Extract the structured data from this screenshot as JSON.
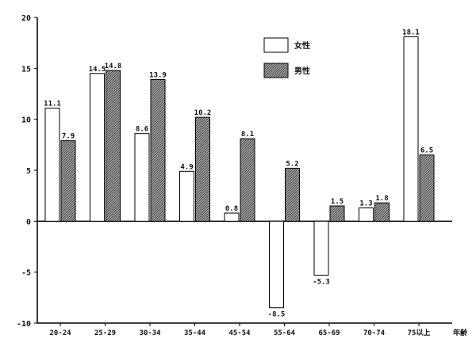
{
  "chart_data": {
    "type": "bar",
    "title": "",
    "xlabel": "年齢",
    "ylabel": "",
    "ylim": [
      -10,
      20
    ],
    "yticks": [
      -10,
      -5,
      0,
      5,
      10,
      15,
      20
    ],
    "ytick_labels": [
      "-10",
      "-5",
      "0",
      "5",
      "10",
      "15",
      "20"
    ],
    "grid": false,
    "legend_position": "top-right",
    "categories": [
      "20-24",
      "25-29",
      "30-34",
      "35-44",
      "45-54",
      "55-64",
      "65-69",
      "70-74",
      "75以上"
    ],
    "series": [
      {
        "name": "女性",
        "values": [
          11.1,
          14.5,
          8.6,
          4.9,
          0.8,
          -8.5,
          -5.3,
          1.3,
          18.1
        ],
        "labels": [
          "11.1",
          "14.5",
          "8.6",
          "4.9",
          "0.8",
          "-8.5",
          "-5.3",
          "1.3",
          "18.1"
        ],
        "fill": "#ffffff"
      },
      {
        "name": "男性",
        "values": [
          7.9,
          14.8,
          13.9,
          10.2,
          8.1,
          5.2,
          1.5,
          1.8,
          6.5
        ],
        "labels": [
          "7.9",
          "14.8",
          "13.9",
          "10.2",
          "8.1",
          "5.2",
          "1.5",
          "1.8",
          "6.5"
        ],
        "fill": "#8c8c8c"
      }
    ]
  }
}
